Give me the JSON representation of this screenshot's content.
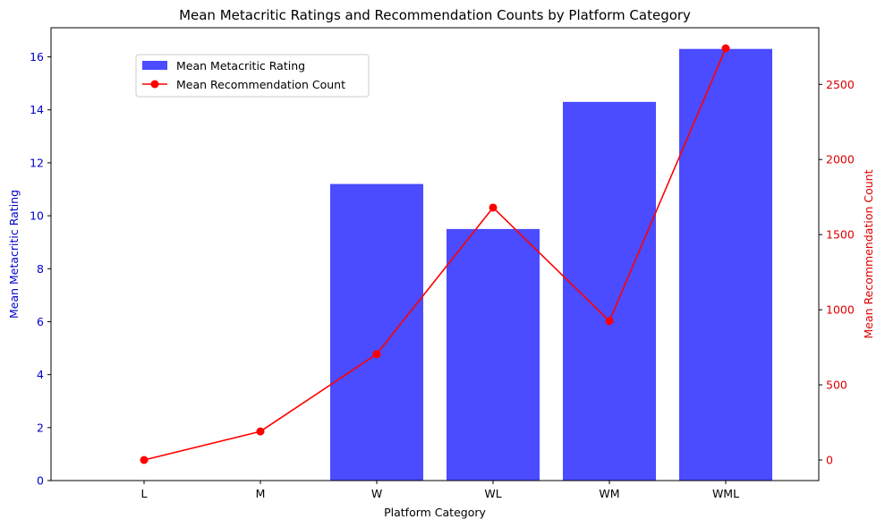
{
  "chart_data": {
    "type": "bar+line",
    "title": "Mean Metacritic Ratings and Recommendation Counts by Platform Category",
    "xlabel": "Platform Category",
    "categories": [
      "L",
      "M",
      "W",
      "WL",
      "WM",
      "WML"
    ],
    "series": [
      {
        "name": "Mean Metacritic Rating",
        "type": "bar",
        "axis": "left",
        "color": "#4b4bff",
        "values": [
          0,
          0,
          11.2,
          9.5,
          14.3,
          16.3
        ]
      },
      {
        "name": "Mean Recommendation Count",
        "type": "line",
        "axis": "right",
        "color": "#ff0000",
        "values": [
          0,
          190,
          705,
          1680,
          925,
          2740
        ]
      }
    ],
    "y_left": {
      "label": "Mean Metacritic Rating",
      "color": "#0000cc",
      "ylim": [
        0,
        17.1
      ],
      "ticks": [
        "0",
        "2",
        "4",
        "6",
        "8",
        "10",
        "12",
        "14",
        "16"
      ]
    },
    "y_right": {
      "label": "Mean Recommendation Count",
      "color": "#dd0000",
      "ylim": [
        -137,
        2877
      ],
      "ticks": [
        "0",
        "500",
        "1000",
        "1500",
        "2000",
        "2500"
      ]
    },
    "legend": {
      "position": "upper-left",
      "entries": [
        "Mean Metacritic Rating",
        "Mean Recommendation Count"
      ]
    },
    "grid": false
  }
}
